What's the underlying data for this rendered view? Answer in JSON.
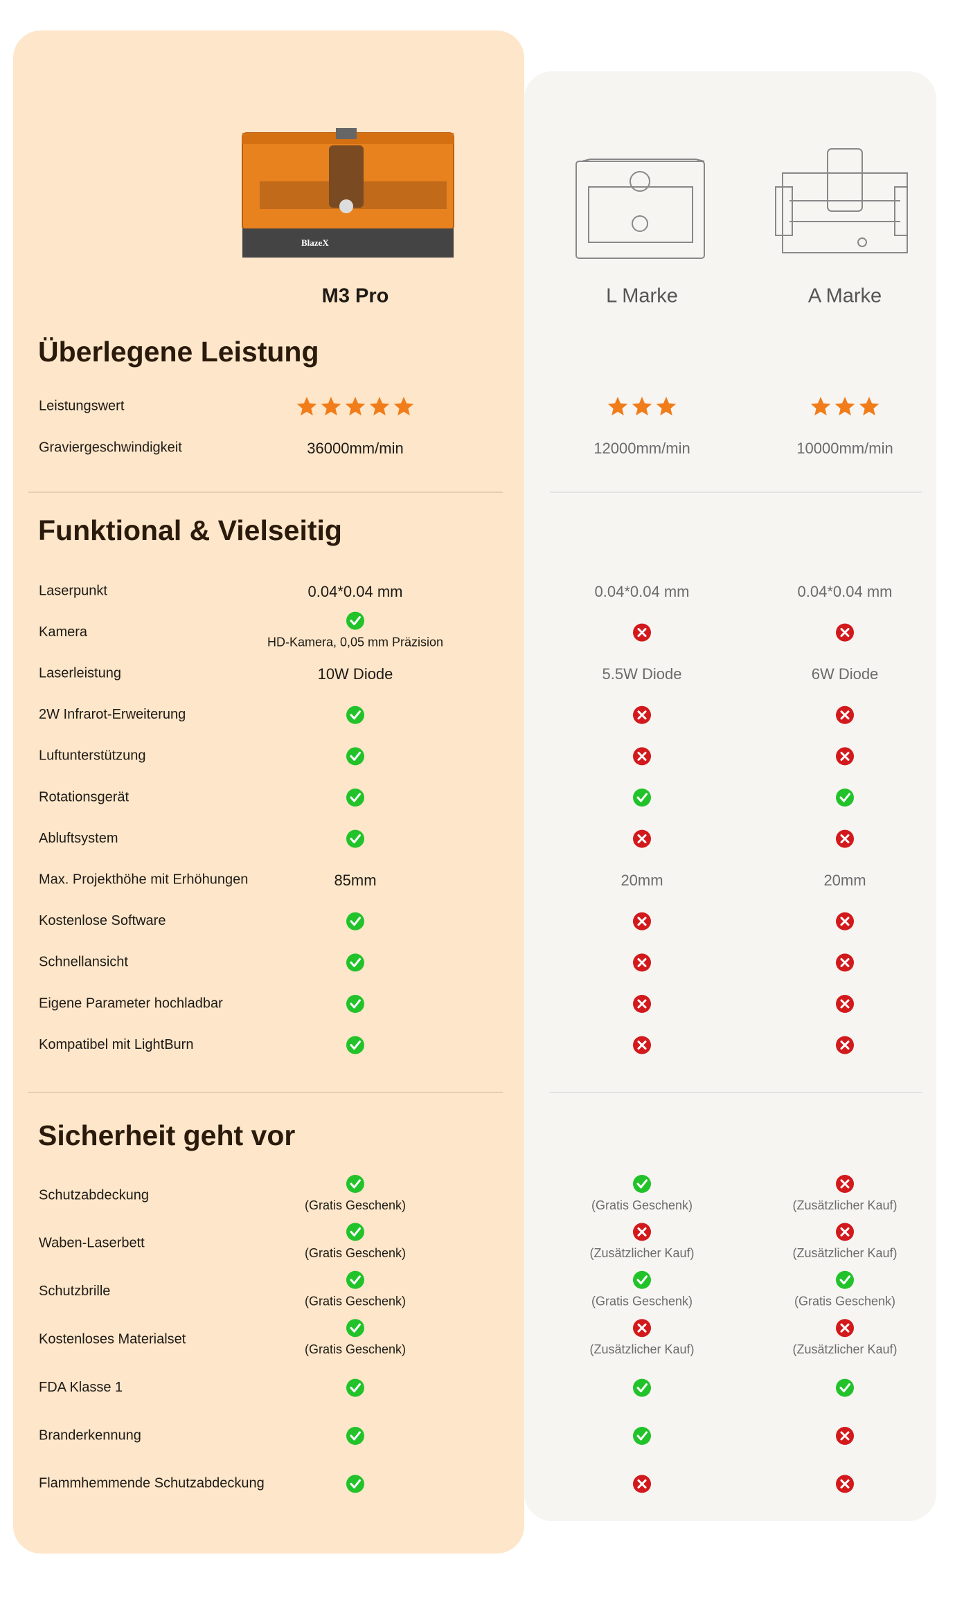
{
  "products": [
    "M3 Pro",
    "L Marke",
    "A Marke"
  ],
  "sections": [
    {
      "title": "Überlegene Leistung",
      "rows": [
        {
          "label": "Leistungswert",
          "cells": [
            {
              "stars": 5
            },
            {
              "stars": 3
            },
            {
              "stars": 3
            }
          ]
        },
        {
          "label": "Graviergeschwindigkeit",
          "cells": [
            {
              "text": "36000mm/min"
            },
            {
              "text": "12000mm/min"
            },
            {
              "text": "10000mm/min"
            }
          ]
        }
      ]
    },
    {
      "title": "Funktional & Vielseitig",
      "rows": [
        {
          "label": "Laserpunkt",
          "cells": [
            {
              "text": "0.04*0.04 mm"
            },
            {
              "text": "0.04*0.04 mm"
            },
            {
              "text": "0.04*0.04 mm"
            }
          ]
        },
        {
          "label": "Kamera",
          "cells": [
            {
              "check": true,
              "note": "HD-Kamera, 0,05 mm Präzision"
            },
            {
              "check": false
            },
            {
              "check": false
            }
          ]
        },
        {
          "label": "Laserleistung",
          "cells": [
            {
              "text": "10W Diode"
            },
            {
              "text": "5.5W Diode"
            },
            {
              "text": "6W Diode"
            }
          ]
        },
        {
          "label": "2W Infrarot-Erweiterung",
          "cells": [
            {
              "check": true
            },
            {
              "check": false
            },
            {
              "check": false
            }
          ]
        },
        {
          "label": "Luftunterstützung",
          "cells": [
            {
              "check": true
            },
            {
              "check": false
            },
            {
              "check": false
            }
          ]
        },
        {
          "label": "Rotationsgerät",
          "cells": [
            {
              "check": true
            },
            {
              "check": true
            },
            {
              "check": true
            }
          ]
        },
        {
          "label": "Abluftsystem",
          "cells": [
            {
              "check": true
            },
            {
              "check": false
            },
            {
              "check": false
            }
          ]
        },
        {
          "label": "Max. Projekthöhe mit Erhöhungen",
          "cells": [
            {
              "text": "85mm"
            },
            {
              "text": "20mm"
            },
            {
              "text": "20mm"
            }
          ]
        },
        {
          "label": "Kostenlose Software",
          "cells": [
            {
              "check": true
            },
            {
              "check": false
            },
            {
              "check": false
            }
          ]
        },
        {
          "label": "Schnellansicht",
          "cells": [
            {
              "check": true
            },
            {
              "check": false
            },
            {
              "check": false
            }
          ]
        },
        {
          "label": "Eigene Parameter hochladbar",
          "cells": [
            {
              "check": true
            },
            {
              "check": false
            },
            {
              "check": false
            }
          ]
        },
        {
          "label": "Kompatibel mit LightBurn",
          "cells": [
            {
              "check": true
            },
            {
              "check": false
            },
            {
              "check": false
            }
          ]
        }
      ]
    },
    {
      "title": "Sicherheit geht vor",
      "rows": [
        {
          "label": "Schutzabdeckung",
          "cells": [
            {
              "check": true,
              "note": "(Gratis Geschenk)"
            },
            {
              "check": true,
              "note": "(Gratis Geschenk)"
            },
            {
              "check": false,
              "note": "(Zusätzlicher Kauf)"
            }
          ]
        },
        {
          "label": "Waben-Laserbett",
          "cells": [
            {
              "check": true,
              "note": "(Gratis Geschenk)"
            },
            {
              "check": false,
              "note": "(Zusätzlicher Kauf)"
            },
            {
              "check": false,
              "note": "(Zusätzlicher Kauf)"
            }
          ]
        },
        {
          "label": "Schutzbrille",
          "cells": [
            {
              "check": true,
              "note": "(Gratis Geschenk)"
            },
            {
              "check": true,
              "note": "(Gratis Geschenk)"
            },
            {
              "check": true,
              "note": "(Gratis Geschenk)"
            }
          ]
        },
        {
          "label": "Kostenloses Materialset",
          "cells": [
            {
              "check": true,
              "note": "(Gratis Geschenk)"
            },
            {
              "check": false,
              "note": "(Zusätzlicher Kauf)"
            },
            {
              "check": false,
              "note": "(Zusätzlicher Kauf)"
            }
          ]
        },
        {
          "label": "FDA Klasse 1",
          "cells": [
            {
              "check": true
            },
            {
              "check": true
            },
            {
              "check": true
            }
          ]
        },
        {
          "label": "Branderkennung",
          "cells": [
            {
              "check": true
            },
            {
              "check": true
            },
            {
              "check": false
            }
          ]
        },
        {
          "label": "Flammhemmende Schutzabdeckung",
          "cells": [
            {
              "check": true
            },
            {
              "check": false
            },
            {
              "check": false
            }
          ]
        }
      ]
    }
  ]
}
